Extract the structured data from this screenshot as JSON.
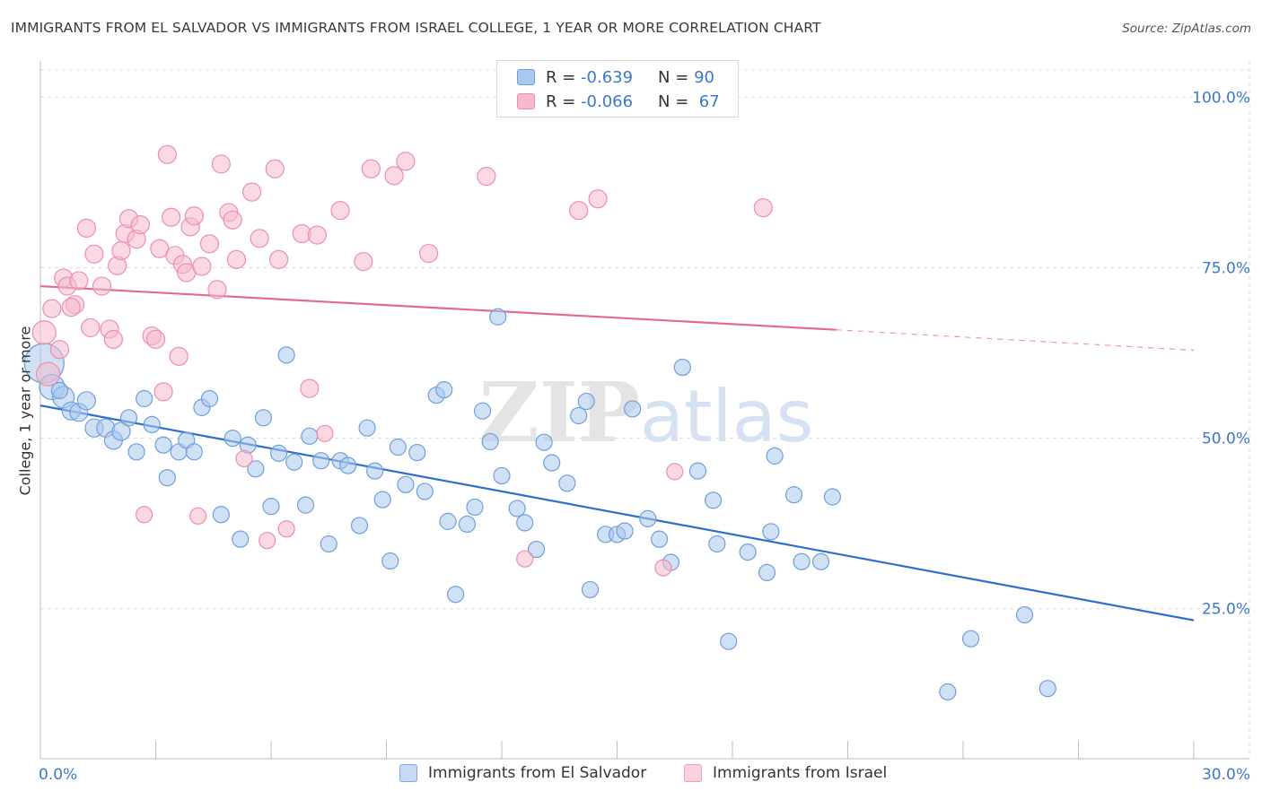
{
  "title": "IMMIGRANTS FROM EL SALVADOR VS IMMIGRANTS FROM ISRAEL COLLEGE, 1 YEAR OR MORE CORRELATION CHART",
  "source": "Source: ZipAtlas.com",
  "watermark": "ZIPatlas",
  "legend": {
    "rows": [
      {
        "r_label": "R =",
        "r_value": "-0.639",
        "n_label": "N =",
        "n_value": "90"
      },
      {
        "r_label": "R =",
        "r_value": "-0.066",
        "n_label": "N =",
        "n_value": "67"
      }
    ]
  },
  "bottom_legend": {
    "items": [
      "Immigrants from El Salvador",
      "Immigrants from Israel"
    ]
  },
  "colors": {
    "blue_fill": "#a9c8ef",
    "blue_stroke": "#6f9fdb",
    "blue_line": "#2f6fcc",
    "pink_fill": "#f6b9cc",
    "pink_stroke": "#eb8fac",
    "pink_line": "#e06a93",
    "tick_text": "#3b78c9",
    "grid": "#dcdcdc"
  },
  "chart_data": {
    "type": "scatter",
    "title": "IMMIGRANTS FROM EL SALVADOR VS IMMIGRANTS FROM ISRAEL COLLEGE, 1 YEAR OR MORE CORRELATION CHART",
    "xlabel": "",
    "ylabel": "College, 1 year or more",
    "xlim": [
      0,
      30
    ],
    "ylim": [
      3,
      104
    ],
    "x_tick_labels": [
      "0.0%",
      "30.0%"
    ],
    "y_ticks": [
      25,
      50,
      75,
      100
    ],
    "y_tick_labels": [
      "25.0%",
      "50.0%",
      "75.0%",
      "100.0%"
    ],
    "grid": true,
    "legend_position": "top-center",
    "series": [
      {
        "name": "Immigrants from El Salvador",
        "R": -0.639,
        "N": 90,
        "trend": {
          "x0": 0,
          "y0": 54.8,
          "x1": 30,
          "y1": 23.3
        },
        "points": [
          [
            0.1,
            61,
            22
          ],
          [
            0.3,
            57.5,
            14
          ],
          [
            0.6,
            56,
            12
          ],
          [
            0.8,
            54,
            10
          ],
          [
            1.0,
            53.8,
            10
          ],
          [
            1.2,
            55.5,
            10
          ],
          [
            1.4,
            51.5,
            10
          ],
          [
            1.7,
            51.5,
            10
          ],
          [
            1.9,
            49.7,
            10
          ],
          [
            2.1,
            51,
            10
          ],
          [
            2.3,
            53,
            9
          ],
          [
            2.5,
            48,
            9
          ],
          [
            2.7,
            55.8,
            9
          ],
          [
            2.9,
            52,
            9
          ],
          [
            3.2,
            49,
            9
          ],
          [
            3.3,
            44.2,
            9
          ],
          [
            3.6,
            48,
            9
          ],
          [
            3.8,
            49.7,
            9
          ],
          [
            4.0,
            48,
            9
          ],
          [
            4.2,
            54.5,
            9
          ],
          [
            4.4,
            55.8,
            9
          ],
          [
            4.7,
            38.8,
            9
          ],
          [
            5.0,
            50,
            9
          ],
          [
            5.2,
            35.2,
            9
          ],
          [
            5.4,
            49,
            9
          ],
          [
            5.6,
            45.5,
            9
          ],
          [
            5.8,
            53,
            9
          ],
          [
            6.0,
            40,
            9
          ],
          [
            6.2,
            47.8,
            9
          ],
          [
            6.4,
            62.2,
            9
          ],
          [
            6.6,
            46.5,
            9
          ],
          [
            6.9,
            40.2,
            9
          ],
          [
            7.0,
            50.3,
            9
          ],
          [
            7.3,
            46.7,
            9
          ],
          [
            7.5,
            34.5,
            9
          ],
          [
            7.8,
            46.7,
            9
          ],
          [
            8.0,
            46,
            9
          ],
          [
            8.3,
            37.2,
            9
          ],
          [
            8.5,
            51.5,
            9
          ],
          [
            8.7,
            45.2,
            9
          ],
          [
            8.9,
            41,
            9
          ],
          [
            9.1,
            32,
            9
          ],
          [
            9.3,
            48.7,
            9
          ],
          [
            9.5,
            43.2,
            9
          ],
          [
            9.8,
            47.9,
            9
          ],
          [
            10.0,
            42.2,
            9
          ],
          [
            10.3,
            56.3,
            9
          ],
          [
            10.5,
            57.1,
            9
          ],
          [
            10.6,
            37.8,
            9
          ],
          [
            10.8,
            27.1,
            9
          ],
          [
            11.1,
            37.4,
            9
          ],
          [
            11.3,
            39.9,
            9
          ],
          [
            11.5,
            54,
            9
          ],
          [
            11.7,
            49.5,
            9
          ],
          [
            11.9,
            67.8,
            9
          ],
          [
            12.0,
            44.5,
            9
          ],
          [
            12.4,
            39.7,
            9
          ],
          [
            12.6,
            37.6,
            9
          ],
          [
            12.9,
            33.7,
            9
          ],
          [
            13.1,
            49.4,
            9
          ],
          [
            13.3,
            46.4,
            9
          ],
          [
            13.7,
            43.4,
            9
          ],
          [
            14.0,
            53.3,
            9
          ],
          [
            14.2,
            55.4,
            9
          ],
          [
            14.3,
            27.8,
            9
          ],
          [
            14.7,
            35.9,
            9
          ],
          [
            15.0,
            35.9,
            9
          ],
          [
            15.2,
            36.4,
            9
          ],
          [
            15.4,
            54.3,
            9
          ],
          [
            15.8,
            38.2,
            9
          ],
          [
            16.1,
            35.2,
            9
          ],
          [
            16.4,
            31.8,
            9
          ],
          [
            16.7,
            60.4,
            9
          ],
          [
            17.1,
            45.2,
            9
          ],
          [
            17.5,
            40.9,
            9
          ],
          [
            17.6,
            34.5,
            9
          ],
          [
            17.9,
            20.2,
            9
          ],
          [
            18.4,
            33.3,
            9
          ],
          [
            18.9,
            30.3,
            9
          ],
          [
            19.0,
            36.3,
            9
          ],
          [
            19.1,
            47.4,
            9
          ],
          [
            19.6,
            41.7,
            9
          ],
          [
            19.8,
            31.9,
            9
          ],
          [
            20.3,
            31.9,
            9
          ],
          [
            20.6,
            41.4,
            9
          ],
          [
            23.6,
            12.8,
            9
          ],
          [
            24.2,
            20.6,
            9
          ],
          [
            25.6,
            24.1,
            9
          ],
          [
            26.2,
            13.3,
            9
          ],
          [
            0.5,
            57,
            9
          ]
        ]
      },
      {
        "name": "Immigrants from Israel",
        "R": -0.066,
        "N": 67,
        "trend": {
          "x0": 0,
          "y0": 72.3,
          "x1": 20.7,
          "y1": 65.9
        },
        "trend_dashed": {
          "x0": 20.7,
          "y0": 65.9,
          "x1": 30,
          "y1": 62.9
        },
        "points": [
          [
            0.1,
            65.5,
            13
          ],
          [
            0.2,
            59.4,
            13
          ],
          [
            0.3,
            69,
            10
          ],
          [
            0.5,
            63,
            10
          ],
          [
            0.6,
            73.5,
            10
          ],
          [
            0.7,
            72.3,
            10
          ],
          [
            0.9,
            69.6,
            10
          ],
          [
            1.0,
            73.1,
            10
          ],
          [
            1.2,
            80.8,
            10
          ],
          [
            1.4,
            77,
            10
          ],
          [
            1.6,
            72.3,
            10
          ],
          [
            1.8,
            66,
            10
          ],
          [
            1.9,
            64.5,
            10
          ],
          [
            2.0,
            75.3,
            10
          ],
          [
            2.2,
            80,
            10
          ],
          [
            2.3,
            82.2,
            10
          ],
          [
            2.5,
            79.2,
            10
          ],
          [
            2.6,
            81.3,
            10
          ],
          [
            2.7,
            38.8,
            9
          ],
          [
            2.9,
            65,
            10
          ],
          [
            3.0,
            64.5,
            10
          ],
          [
            3.1,
            77.8,
            10
          ],
          [
            3.2,
            56.8,
            10
          ],
          [
            3.3,
            91.6,
            10
          ],
          [
            3.4,
            82.4,
            10
          ],
          [
            3.5,
            76.8,
            10
          ],
          [
            3.6,
            62,
            10
          ],
          [
            3.7,
            75.5,
            10
          ],
          [
            3.8,
            74.3,
            10
          ],
          [
            3.9,
            81,
            10
          ],
          [
            4.0,
            82.6,
            10
          ],
          [
            4.1,
            38.6,
            9
          ],
          [
            4.2,
            75.2,
            10
          ],
          [
            4.4,
            78.5,
            10
          ],
          [
            4.6,
            71.8,
            10
          ],
          [
            4.7,
            90.2,
            10
          ],
          [
            4.9,
            83.1,
            10
          ],
          [
            5.0,
            82,
            10
          ],
          [
            5.1,
            76.2,
            10
          ],
          [
            5.3,
            47,
            9
          ],
          [
            5.5,
            86.1,
            10
          ],
          [
            5.7,
            79.3,
            10
          ],
          [
            5.9,
            35,
            9
          ],
          [
            6.1,
            89.5,
            10
          ],
          [
            6.2,
            76.2,
            10
          ],
          [
            6.4,
            36.7,
            9
          ],
          [
            6.8,
            80,
            10
          ],
          [
            7.0,
            57.3,
            10
          ],
          [
            7.2,
            79.8,
            10
          ],
          [
            7.4,
            50.7,
            9
          ],
          [
            7.8,
            83.4,
            10
          ],
          [
            8.4,
            75.9,
            10
          ],
          [
            8.6,
            89.5,
            10
          ],
          [
            9.2,
            88.5,
            10
          ],
          [
            9.5,
            90.6,
            10
          ],
          [
            10.1,
            77.1,
            10
          ],
          [
            11.6,
            88.4,
            10
          ],
          [
            12.6,
            32.3,
            9
          ],
          [
            14.0,
            83.4,
            10
          ],
          [
            14.5,
            85.1,
            10
          ],
          [
            16.2,
            31,
            9
          ],
          [
            16.5,
            45.1,
            9
          ],
          [
            18.8,
            83.8,
            10
          ],
          [
            20.0,
            22.5,
            0
          ],
          [
            0.8,
            69.2,
            10
          ],
          [
            1.3,
            66.2,
            10
          ],
          [
            2.1,
            77.5,
            10
          ]
        ]
      }
    ]
  }
}
